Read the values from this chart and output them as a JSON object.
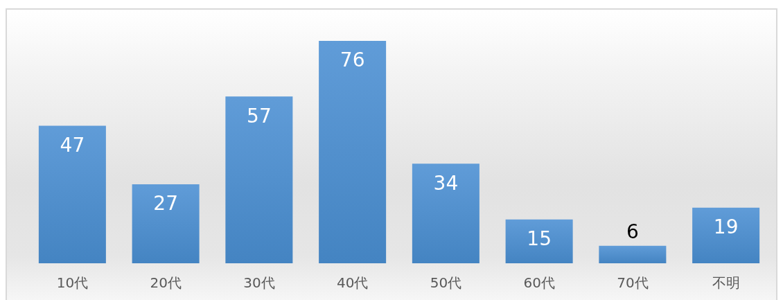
{
  "chart_data": {
    "type": "bar",
    "categories": [
      "10代",
      "20代",
      "30代",
      "40代",
      "50代",
      "60代",
      "70代",
      "不明"
    ],
    "values": [
      47,
      27,
      57,
      76,
      34,
      15,
      6,
      19
    ],
    "color": "#4a8fd3",
    "tick_labels": "x",
    "data_labels": true
  }
}
